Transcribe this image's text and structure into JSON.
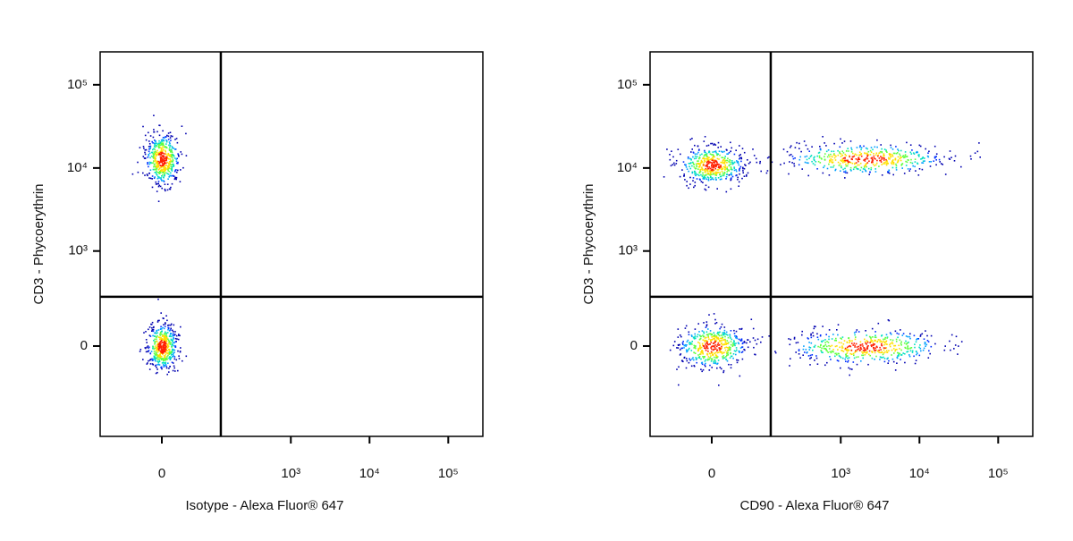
{
  "chart_data": [
    {
      "type": "scatter",
      "x_label": "Isotype - Alexa Fluor® 647",
      "y_label": "CD3 - Phycoerythrin",
      "xlim": [
        -136,
        275000
      ],
      "ylim": [
        -877,
        248700
      ],
      "xticks": [
        {
          "value": 0,
          "label": "0"
        },
        {
          "value": 1000,
          "label": "10³"
        },
        {
          "value": 10000,
          "label": "10⁴"
        },
        {
          "value": 100000,
          "label": "10⁵"
        }
      ],
      "yticks": [
        {
          "value": 0,
          "label": "0"
        },
        {
          "value": 1000,
          "label": "10³"
        },
        {
          "value": 10000,
          "label": "10⁴"
        },
        {
          "value": 100000,
          "label": "10⁵"
        }
      ],
      "gate": {
        "x": 125,
        "y": 265
      },
      "populations": [
        {
          "x": 0,
          "y": 13000
        },
        {
          "x": 0,
          "y": 0
        }
      ]
    },
    {
      "type": "scatter",
      "x_label": "CD90 - Alexa Fluor® 647",
      "y_label": "CD3 - Phycoerythrin",
      "xlim": [
        -136,
        275000
      ],
      "ylim": [
        -877,
        248700
      ],
      "xticks": [
        {
          "value": 0,
          "label": "0"
        },
        {
          "value": 1000,
          "label": "10³"
        },
        {
          "value": 10000,
          "label": "10⁴"
        },
        {
          "value": 100000,
          "label": "10⁵"
        }
      ],
      "yticks": [
        {
          "value": 0,
          "label": "0"
        },
        {
          "value": 1000,
          "label": "10³"
        },
        {
          "value": 10000,
          "label": "10⁴"
        },
        {
          "value": 100000,
          "label": "10⁵"
        }
      ],
      "gate": {
        "x": 125,
        "y": 265
      },
      "populations": [
        {
          "x": 0,
          "y": 11000
        },
        {
          "x": 2000,
          "y": 13000
        },
        {
          "x": 0,
          "y": 0
        },
        {
          "x": 2000,
          "y": 0
        }
      ]
    }
  ]
}
